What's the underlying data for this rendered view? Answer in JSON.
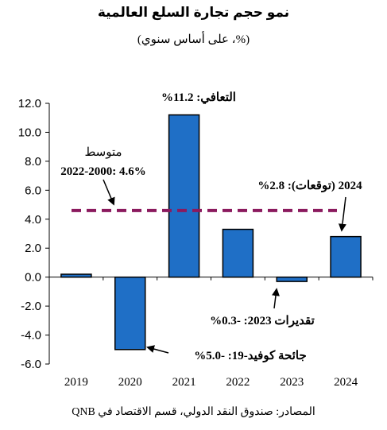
{
  "title": "نمو حجم تجارة السلع العالمية",
  "subtitle": "(%، على أساس سنوي)",
  "source": "المصادر: صندوق النقد الدولي، قسم الاقتصاد في QNB",
  "colors": {
    "bar": "#1f6fc6",
    "bar_stroke": "#000000",
    "average_line": "#8b1a5e"
  },
  "chart_data": {
    "type": "bar",
    "categories": [
      "2019",
      "2020",
      "2021",
      "2022",
      "2023",
      "2024"
    ],
    "values": [
      0.2,
      -5.0,
      11.2,
      3.3,
      -0.3,
      2.8
    ],
    "ylim": [
      -6.0,
      12.0
    ],
    "yticks": [
      12.0,
      10.0,
      8.0,
      6.0,
      4.0,
      2.0,
      0.0,
      -2.0,
      -4.0,
      -6.0
    ],
    "ytick_labels": [
      "12.0",
      "10.0",
      "8.0",
      "6.0",
      "4.0",
      "2.0",
      "0.0",
      "-2.0",
      "-4.0",
      "-6.0"
    ],
    "average": {
      "value": 4.6,
      "label_line1": "متوسط",
      "label_line2": "2022-2000: 4.6%"
    },
    "annotations": {
      "y2021": "التعافي: 11.2%",
      "y2024": "2024 (توقعات): 2.8%",
      "y2023": "تقديرات 2023: -0.3%",
      "y2020": "جائحة كوفيد-19: -5.0%"
    }
  }
}
